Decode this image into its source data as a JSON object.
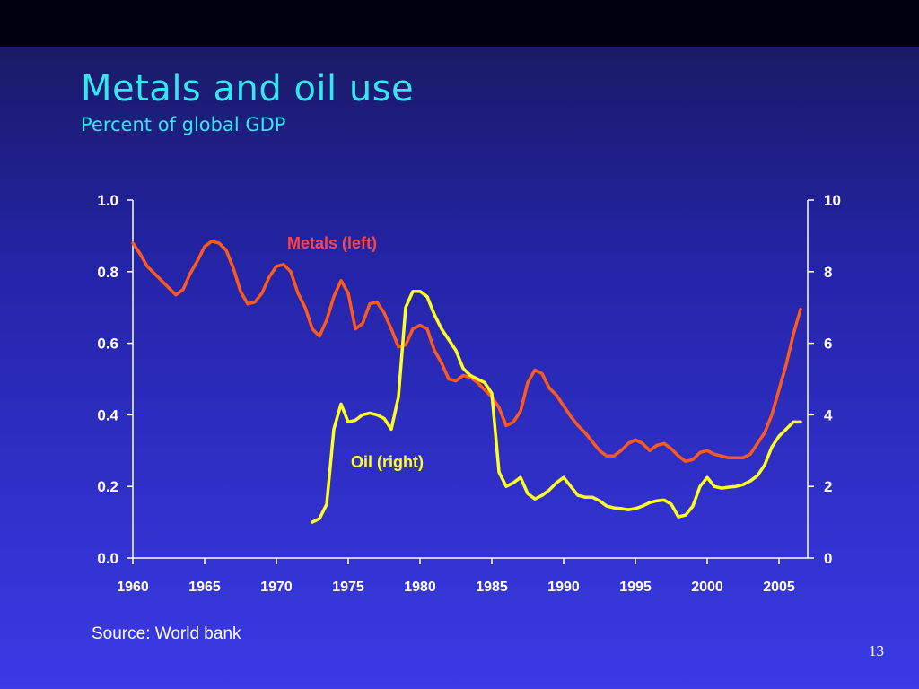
{
  "slide": {
    "title": "Metals and oil use",
    "subtitle": "Percent of global GDP",
    "source": "Source: World bank",
    "page_number": "13"
  },
  "colors": {
    "metals": "#ff5a1a",
    "oil": "#ffff22",
    "metals_label": "#ff4444",
    "oil_label": "#ffff22",
    "title": "#33e6f0",
    "axis": "#ffffff"
  },
  "chart_data": {
    "type": "line",
    "title": "Metals and oil use",
    "subtitle": "Percent of global GDP",
    "grid": false,
    "x_range": [
      1960,
      2007
    ],
    "x_ticks": [
      "1960",
      "1965",
      "1970",
      "1975",
      "1980",
      "1985",
      "1990",
      "1995",
      "2000",
      "2005"
    ],
    "y_left": {
      "range": [
        0,
        1.0
      ],
      "ticks": [
        "0.0",
        "0.2",
        "0.4",
        "0.6",
        "0.8",
        "1.0"
      ]
    },
    "y_right": {
      "range": [
        0,
        10
      ],
      "ticks": [
        "0",
        "2",
        "4",
        "6",
        "8",
        "10"
      ]
    },
    "annotations": [
      {
        "text": "Metals (left)",
        "series": "Metals (left)"
      },
      {
        "text": "Oil (right)",
        "series": "Oil (right)"
      }
    ],
    "series": [
      {
        "name": "Metals (left)",
        "axis": "left",
        "x": [
          1960.0,
          1960.5,
          1961.0,
          1961.5,
          1962.0,
          1962.5,
          1963.0,
          1963.5,
          1964.0,
          1964.5,
          1965.0,
          1965.5,
          1966.0,
          1966.5,
          1967.0,
          1967.5,
          1968.0,
          1968.5,
          1969.0,
          1969.5,
          1970.0,
          1970.5,
          1971.0,
          1971.5,
          1972.0,
          1972.5,
          1973.0,
          1973.5,
          1974.0,
          1974.5,
          1975.0,
          1975.5,
          1976.0,
          1976.5,
          1977.0,
          1977.5,
          1978.0,
          1978.5,
          1979.0,
          1979.5,
          1980.0,
          1980.5,
          1981.0,
          1981.5,
          1982.0,
          1982.5,
          1983.0,
          1983.5,
          1984.0,
          1984.5,
          1985.0,
          1985.5,
          1986.0,
          1986.5,
          1987.0,
          1987.5,
          1988.0,
          1988.5,
          1989.0,
          1989.5,
          1990.0,
          1990.5,
          1991.0,
          1991.5,
          1992.0,
          1992.5,
          1993.0,
          1993.5,
          1994.0,
          1994.5,
          1995.0,
          1995.5,
          1996.0,
          1996.5,
          1997.0,
          1997.5,
          1998.0,
          1998.5,
          1999.0,
          1999.5,
          2000.0,
          2000.5,
          2001.0,
          2001.5,
          2002.0,
          2002.5,
          2003.0,
          2003.5,
          2004.0,
          2004.5,
          2005.0,
          2005.5,
          2006.0,
          2006.5
        ],
        "values": [
          0.88,
          0.85,
          0.815,
          0.795,
          0.775,
          0.755,
          0.735,
          0.75,
          0.795,
          0.83,
          0.87,
          0.885,
          0.88,
          0.86,
          0.81,
          0.745,
          0.71,
          0.715,
          0.74,
          0.785,
          0.815,
          0.82,
          0.8,
          0.74,
          0.7,
          0.64,
          0.62,
          0.665,
          0.73,
          0.775,
          0.74,
          0.64,
          0.655,
          0.71,
          0.715,
          0.685,
          0.64,
          0.59,
          0.595,
          0.64,
          0.65,
          0.64,
          0.58,
          0.545,
          0.5,
          0.495,
          0.51,
          0.505,
          0.49,
          0.47,
          0.45,
          0.42,
          0.37,
          0.38,
          0.41,
          0.49,
          0.525,
          0.515,
          0.475,
          0.455,
          0.425,
          0.395,
          0.37,
          0.35,
          0.325,
          0.3,
          0.285,
          0.285,
          0.3,
          0.32,
          0.33,
          0.32,
          0.3,
          0.315,
          0.32,
          0.305,
          0.285,
          0.27,
          0.275,
          0.295,
          0.3,
          0.29,
          0.285,
          0.28,
          0.28,
          0.28,
          0.29,
          0.32,
          0.35,
          0.4,
          0.47,
          0.54,
          0.625,
          0.695
        ]
      },
      {
        "name": "Oil (right)",
        "axis": "right",
        "x": [
          1972.5,
          1973.0,
          1973.5,
          1974.0,
          1974.5,
          1975.0,
          1975.5,
          1976.0,
          1976.5,
          1977.0,
          1977.5,
          1978.0,
          1978.5,
          1979.0,
          1979.5,
          1980.0,
          1980.5,
          1981.0,
          1981.5,
          1982.0,
          1982.5,
          1983.0,
          1983.5,
          1984.0,
          1984.5,
          1985.0,
          1985.5,
          1986.0,
          1986.5,
          1987.0,
          1987.5,
          1988.0,
          1988.5,
          1989.0,
          1989.5,
          1990.0,
          1990.5,
          1991.0,
          1991.5,
          1992.0,
          1992.5,
          1993.0,
          1993.5,
          1994.0,
          1994.5,
          1995.0,
          1995.5,
          1996.0,
          1996.5,
          1997.0,
          1997.5,
          1998.0,
          1998.5,
          1999.0,
          1999.5,
          2000.0,
          2000.5,
          2001.0,
          2001.5,
          2002.0,
          2002.5,
          2003.0,
          2003.5,
          2004.0,
          2004.5,
          2005.0,
          2005.5,
          2006.0,
          2006.5
        ],
        "values": [
          1.0,
          1.1,
          1.5,
          3.6,
          4.3,
          3.8,
          3.85,
          4.0,
          4.05,
          4.0,
          3.9,
          3.6,
          4.5,
          7.0,
          7.45,
          7.45,
          7.3,
          6.8,
          6.4,
          6.1,
          5.8,
          5.3,
          5.1,
          5.0,
          4.9,
          4.6,
          2.4,
          2.0,
          2.1,
          2.25,
          1.8,
          1.65,
          1.75,
          1.9,
          2.1,
          2.25,
          2.0,
          1.75,
          1.7,
          1.7,
          1.6,
          1.45,
          1.4,
          1.38,
          1.35,
          1.38,
          1.45,
          1.55,
          1.6,
          1.62,
          1.5,
          1.15,
          1.2,
          1.45,
          2.0,
          2.25,
          2.0,
          1.95,
          1.98,
          2.0,
          2.05,
          2.15,
          2.3,
          2.6,
          3.1,
          3.4,
          3.6,
          3.8,
          3.8
        ]
      }
    ]
  }
}
